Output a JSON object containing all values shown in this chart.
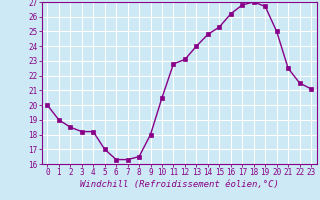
{
  "x": [
    0,
    1,
    2,
    3,
    4,
    5,
    6,
    7,
    8,
    9,
    10,
    11,
    12,
    13,
    14,
    15,
    16,
    17,
    18,
    19,
    20,
    21,
    22,
    23
  ],
  "y": [
    20,
    19,
    18.5,
    18.2,
    18.2,
    17.0,
    16.3,
    16.3,
    16.5,
    18.0,
    20.5,
    22.8,
    23.1,
    24.0,
    24.8,
    25.3,
    26.2,
    26.8,
    27.0,
    26.7,
    25.0,
    22.5,
    21.5,
    21.1
  ],
  "ylim": [
    16,
    27
  ],
  "xlim_min": -0.5,
  "xlim_max": 23.5,
  "yticks": [
    16,
    17,
    18,
    19,
    20,
    21,
    22,
    23,
    24,
    25,
    26,
    27
  ],
  "xticks": [
    0,
    1,
    2,
    3,
    4,
    5,
    6,
    7,
    8,
    9,
    10,
    11,
    12,
    13,
    14,
    15,
    16,
    17,
    18,
    19,
    20,
    21,
    22,
    23
  ],
  "xtick_labels": [
    "0",
    "1",
    "2",
    "3",
    "4",
    "5",
    "6",
    "7",
    "8",
    "9",
    "10",
    "11",
    "12",
    "13",
    "14",
    "15",
    "16",
    "17",
    "18",
    "19",
    "20",
    "21",
    "22",
    "23"
  ],
  "xlabel": "Windchill (Refroidissement éolien,°C)",
  "line_color": "#880088",
  "marker": "s",
  "markersize": 2.5,
  "linewidth": 1.0,
  "bg_color": "#cce9f5",
  "grid_color": "#ffffff",
  "xlabel_fontsize": 6.5,
  "tick_fontsize": 5.5
}
